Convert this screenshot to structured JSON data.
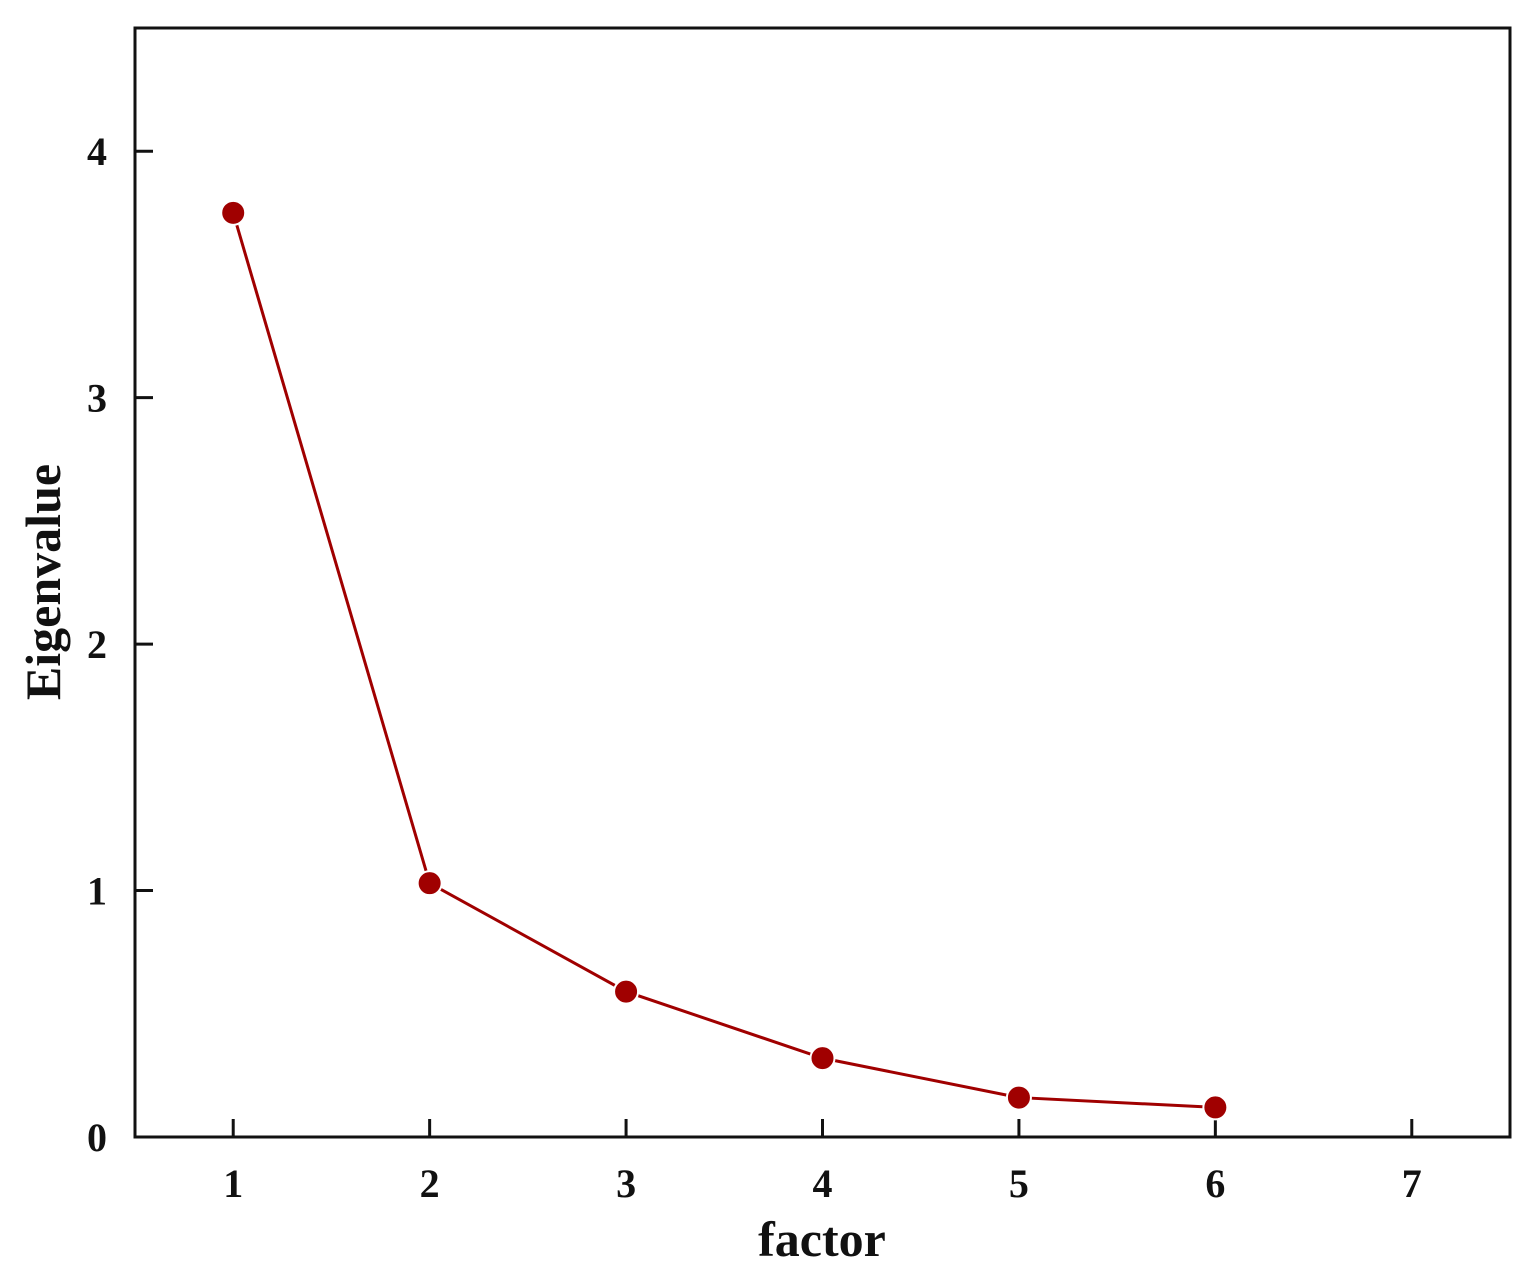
{
  "chart_data": {
    "type": "line",
    "title": "",
    "xlabel": "factor",
    "ylabel": "Eigenvalue",
    "x": [
      1,
      2,
      3,
      4,
      5,
      6
    ],
    "series": [
      {
        "values": [
          3.75,
          1.03,
          0.59,
          0.32,
          0.16,
          0.12
        ]
      }
    ],
    "xlim": [
      0.5,
      7.5
    ],
    "ylim": [
      0,
      4.5
    ],
    "xticks": [
      "1",
      "2",
      "3",
      "4",
      "5",
      "6",
      "7"
    ],
    "yticks": [
      "0",
      "1",
      "2",
      "3",
      "4"
    ],
    "grid": false,
    "legend": "none",
    "colors": {
      "series": "#a00000",
      "axes": "#111111"
    }
  }
}
